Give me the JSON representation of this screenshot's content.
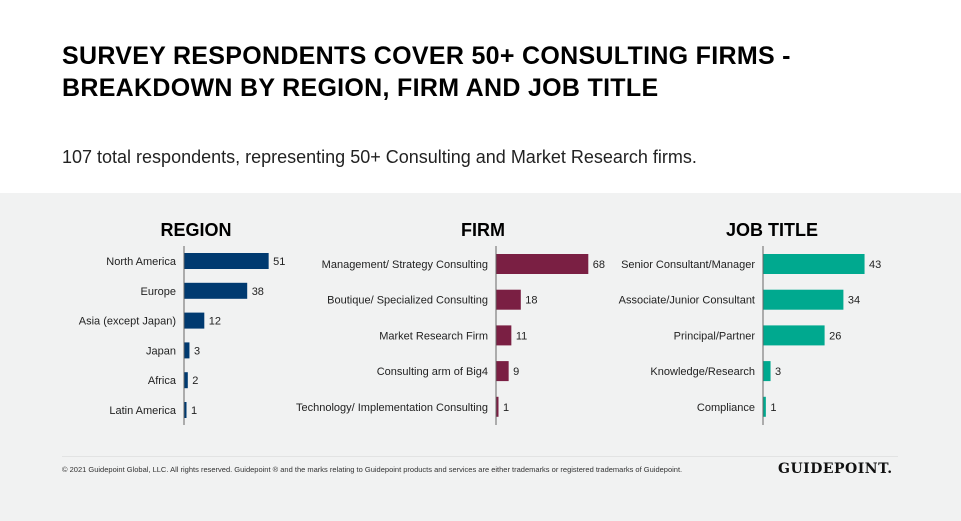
{
  "title_line1": "SURVEY RESPONDENTS COVER 50+ CONSULTING FIRMS -",
  "title_line2": "BREAKDOWN BY REGION, FIRM AND JOB TITLE",
  "subtitle": "107 total respondents, representing 50+ Consulting and Market Research firms.",
  "footer": "© 2021 Guidepoint Global, LLC. All rights reserved. Guidepoint ® and the marks relating to Guidepoint products and services are either trademarks or registered trademarks of Guidepoint.",
  "logo": "GUIDEPOINT.",
  "chart_data": [
    {
      "type": "bar",
      "orientation": "horizontal",
      "title": "REGION",
      "color": "#003a70",
      "categories": [
        "North America",
        "Europe",
        "Asia (except Japan)",
        "Japan",
        "Africa",
        "Latin America"
      ],
      "values": [
        51,
        38,
        12,
        3,
        2,
        1
      ]
    },
    {
      "type": "bar",
      "orientation": "horizontal",
      "title": "FIRM",
      "color": "#7a1f43",
      "categories": [
        "Management/ Strategy Consulting",
        "Boutique/ Specialized Consulting",
        "Market Research Firm",
        "Consulting arm of Big4",
        "Technology/ Implementation Consulting"
      ],
      "values": [
        68,
        18,
        11,
        9,
        1
      ]
    },
    {
      "type": "bar",
      "orientation": "horizontal",
      "title": "JOB TITLE",
      "color": "#00a98f",
      "categories": [
        "Senior Consultant/Manager",
        "Associate/Junior Consultant",
        "Principal/Partner",
        "Knowledge/Research",
        "Compliance"
      ],
      "values": [
        43,
        34,
        26,
        3,
        1
      ]
    }
  ]
}
